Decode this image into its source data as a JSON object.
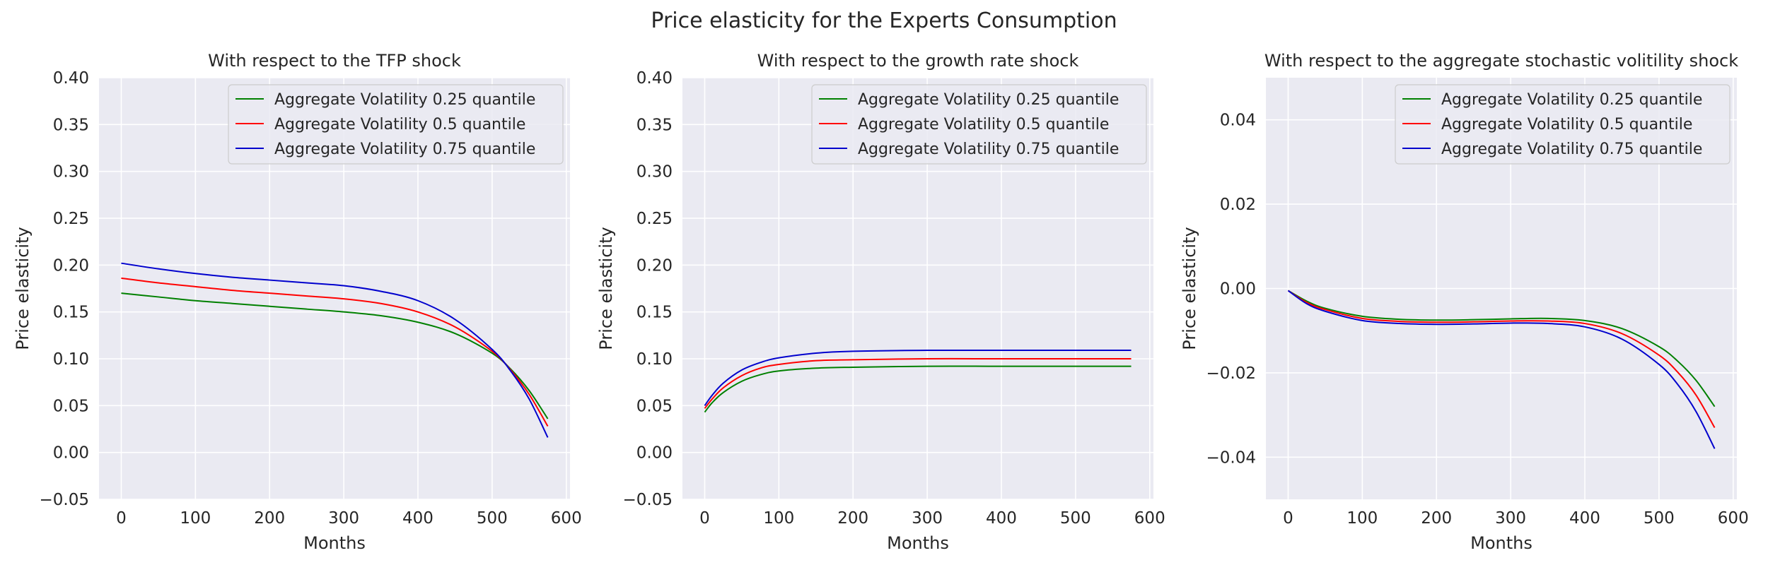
{
  "figure": {
    "title": "Price elasticity for the Experts Consumption"
  },
  "chart_data": [
    {
      "type": "line",
      "title": "With respect to the TFP shock",
      "xlabel": "Months",
      "ylabel": "Price elasticity",
      "xlim": [
        -30,
        605
      ],
      "ylim": [
        -0.05,
        0.4
      ],
      "xticks": [
        0,
        100,
        200,
        300,
        400,
        500,
        600
      ],
      "xtick_labels": [
        "0",
        "100",
        "200",
        "300",
        "400",
        "500",
        "600"
      ],
      "yticks": [
        -0.05,
        0.0,
        0.05,
        0.1,
        0.15,
        0.2,
        0.25,
        0.3,
        0.35,
        0.4
      ],
      "ytick_labels": [
        "−0.05",
        "0.00",
        "0.05",
        "0.10",
        "0.15",
        "0.20",
        "0.25",
        "0.30",
        "0.35",
        "0.40"
      ],
      "grid": true,
      "legend_position": "upper right",
      "x": [
        0,
        50,
        100,
        150,
        200,
        250,
        300,
        350,
        400,
        450,
        500,
        525,
        550,
        575
      ],
      "series": [
        {
          "name": "Aggregate Volatility 0.25 quantile",
          "color": "#008000",
          "values": [
            0.17,
            0.166,
            0.162,
            0.159,
            0.156,
            0.153,
            0.15,
            0.146,
            0.139,
            0.127,
            0.106,
            0.089,
            0.066,
            0.036
          ]
        },
        {
          "name": "Aggregate Volatility 0.5 quantile",
          "color": "#ff0000",
          "values": [
            0.186,
            0.181,
            0.177,
            0.173,
            0.17,
            0.167,
            0.164,
            0.159,
            0.15,
            0.134,
            0.108,
            0.088,
            0.062,
            0.028
          ]
        },
        {
          "name": "Aggregate Volatility 0.75 quantile",
          "color": "#0000cd",
          "values": [
            0.202,
            0.196,
            0.191,
            0.187,
            0.184,
            0.181,
            0.178,
            0.172,
            0.162,
            0.142,
            0.11,
            0.087,
            0.057,
            0.016
          ]
        }
      ]
    },
    {
      "type": "line",
      "title": "With respect to the growth rate shock",
      "xlabel": "Months",
      "ylabel": "Price elasticity",
      "xlim": [
        -30,
        605
      ],
      "ylim": [
        -0.05,
        0.4
      ],
      "xticks": [
        0,
        100,
        200,
        300,
        400,
        500,
        600
      ],
      "xtick_labels": [
        "0",
        "100",
        "200",
        "300",
        "400",
        "500",
        "600"
      ],
      "yticks": [
        -0.05,
        0.0,
        0.05,
        0.1,
        0.15,
        0.2,
        0.25,
        0.3,
        0.35,
        0.4
      ],
      "ytick_labels": [
        "−0.05",
        "0.00",
        "0.05",
        "0.10",
        "0.15",
        "0.20",
        "0.25",
        "0.30",
        "0.35",
        "0.40"
      ],
      "grid": true,
      "legend_position": "upper right",
      "x": [
        0,
        10,
        25,
        50,
        75,
        100,
        150,
        200,
        300,
        400,
        500,
        575
      ],
      "series": [
        {
          "name": "Aggregate Volatility 0.25 quantile",
          "color": "#008000",
          "values": [
            0.043,
            0.053,
            0.064,
            0.076,
            0.083,
            0.087,
            0.09,
            0.091,
            0.092,
            0.092,
            0.092,
            0.092
          ]
        },
        {
          "name": "Aggregate Volatility 0.5 quantile",
          "color": "#ff0000",
          "values": [
            0.047,
            0.057,
            0.069,
            0.082,
            0.09,
            0.094,
            0.098,
            0.099,
            0.1,
            0.1,
            0.1,
            0.1
          ]
        },
        {
          "name": "Aggregate Volatility 0.75 quantile",
          "color": "#0000cd",
          "values": [
            0.05,
            0.061,
            0.074,
            0.088,
            0.096,
            0.101,
            0.106,
            0.108,
            0.109,
            0.109,
            0.109,
            0.109
          ]
        }
      ]
    },
    {
      "type": "line",
      "title": "With respect to the aggregate stochastic volitility shock",
      "xlabel": "Months",
      "ylabel": "Price elasticity",
      "xlim": [
        -30,
        605
      ],
      "ylim": [
        -0.05,
        0.05
      ],
      "xticks": [
        0,
        100,
        200,
        300,
        400,
        500,
        600
      ],
      "xtick_labels": [
        "0",
        "100",
        "200",
        "300",
        "400",
        "500",
        "600"
      ],
      "yticks": [
        -0.04,
        -0.02,
        0.0,
        0.02,
        0.04
      ],
      "ytick_labels": [
        "−0.04",
        "−0.02",
        "0.00",
        "0.02",
        "0.04"
      ],
      "grid": true,
      "legend_position": "upper right",
      "x": [
        0,
        25,
        50,
        100,
        150,
        200,
        250,
        300,
        350,
        400,
        450,
        500,
        525,
        550,
        575
      ],
      "series": [
        {
          "name": "Aggregate Volatility 0.25 quantile",
          "color": "#008000",
          "values": [
            -0.0005,
            -0.003,
            -0.0047,
            -0.0066,
            -0.0073,
            -0.0075,
            -0.0074,
            -0.0072,
            -0.0071,
            -0.0076,
            -0.0095,
            -0.0138,
            -0.0172,
            -0.0218,
            -0.028
          ]
        },
        {
          "name": "Aggregate Volatility 0.5 quantile",
          "color": "#ff0000",
          "values": [
            -0.0005,
            -0.0033,
            -0.005,
            -0.0071,
            -0.0078,
            -0.008,
            -0.0079,
            -0.0077,
            -0.0077,
            -0.0083,
            -0.0107,
            -0.0158,
            -0.0198,
            -0.0253,
            -0.033
          ]
        },
        {
          "name": "Aggregate Volatility 0.75 quantile",
          "color": "#0000cd",
          "values": [
            -0.0005,
            -0.0036,
            -0.0054,
            -0.0076,
            -0.0083,
            -0.0085,
            -0.0084,
            -0.0082,
            -0.0083,
            -0.0091,
            -0.012,
            -0.018,
            -0.0227,
            -0.0292,
            -0.038
          ]
        }
      ]
    }
  ]
}
